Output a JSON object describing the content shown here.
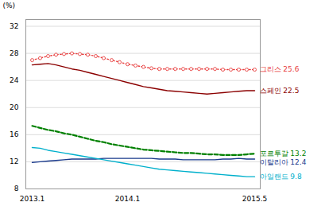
{
  "chart_data": {
    "type": "line",
    "ylabel": "(%)",
    "categories": [
      "2013.1",
      null,
      null,
      null,
      null,
      null,
      null,
      null,
      null,
      null,
      null,
      null,
      "2014.1",
      null,
      null,
      null,
      null,
      null,
      null,
      null,
      null,
      null,
      null,
      null,
      null,
      null,
      null,
      null,
      "2015.5"
    ],
    "ylim": [
      8,
      33
    ],
    "yticks": [
      8,
      12,
      16,
      20,
      24,
      28,
      32
    ],
    "grid": true,
    "series": [
      {
        "name": "그리스 25.6",
        "color": "#e84040",
        "line_style": "dotted",
        "marker": "circle",
        "values": [
          27.0,
          27.3,
          27.6,
          27.8,
          27.9,
          28.0,
          27.9,
          27.8,
          27.6,
          27.3,
          27.0,
          26.7,
          26.4,
          26.2,
          26.0,
          25.8,
          25.7,
          25.7,
          25.7,
          25.7,
          25.7,
          25.7,
          25.7,
          25.7,
          25.6,
          25.6,
          25.6,
          25.6,
          25.6
        ]
      },
      {
        "name": "스페인 22.5",
        "color": "#8b0000",
        "line_style": "solid",
        "values": [
          26.3,
          26.4,
          26.5,
          26.3,
          26.0,
          25.7,
          25.5,
          25.2,
          24.9,
          24.6,
          24.3,
          24.0,
          23.7,
          23.4,
          23.1,
          22.9,
          22.7,
          22.5,
          22.4,
          22.3,
          22.2,
          22.1,
          22.0,
          22.1,
          22.2,
          22.3,
          22.4,
          22.5,
          22.5
        ]
      },
      {
        "name": "포르투갈 13.2",
        "color": "#008000",
        "line_style": "dashed",
        "values": [
          17.3,
          17.0,
          16.7,
          16.5,
          16.2,
          16.0,
          15.7,
          15.4,
          15.1,
          14.9,
          14.6,
          14.4,
          14.2,
          14.0,
          13.8,
          13.7,
          13.6,
          13.5,
          13.4,
          13.3,
          13.3,
          13.2,
          13.1,
          13.1,
          13.0,
          13.0,
          13.0,
          13.1,
          13.2
        ]
      },
      {
        "name": "이탈리아 12.4",
        "color": "#1a3a8c",
        "line_style": "solid",
        "values": [
          11.9,
          12.0,
          12.1,
          12.2,
          12.3,
          12.4,
          12.4,
          12.4,
          12.4,
          12.5,
          12.5,
          12.5,
          12.5,
          12.5,
          12.5,
          12.5,
          12.4,
          12.4,
          12.4,
          12.3,
          12.3,
          12.3,
          12.3,
          12.3,
          12.4,
          12.4,
          12.5,
          12.4,
          12.4
        ]
      },
      {
        "name": "아일랜드 9.8",
        "color": "#00b0cc",
        "line_style": "solid",
        "values": [
          14.1,
          14.0,
          13.7,
          13.5,
          13.3,
          13.1,
          12.9,
          12.7,
          12.5,
          12.3,
          12.1,
          11.9,
          11.7,
          11.5,
          11.3,
          11.1,
          10.9,
          10.8,
          10.7,
          10.6,
          10.5,
          10.4,
          10.3,
          10.2,
          10.1,
          10.0,
          9.9,
          9.8,
          9.8
        ]
      }
    ]
  }
}
